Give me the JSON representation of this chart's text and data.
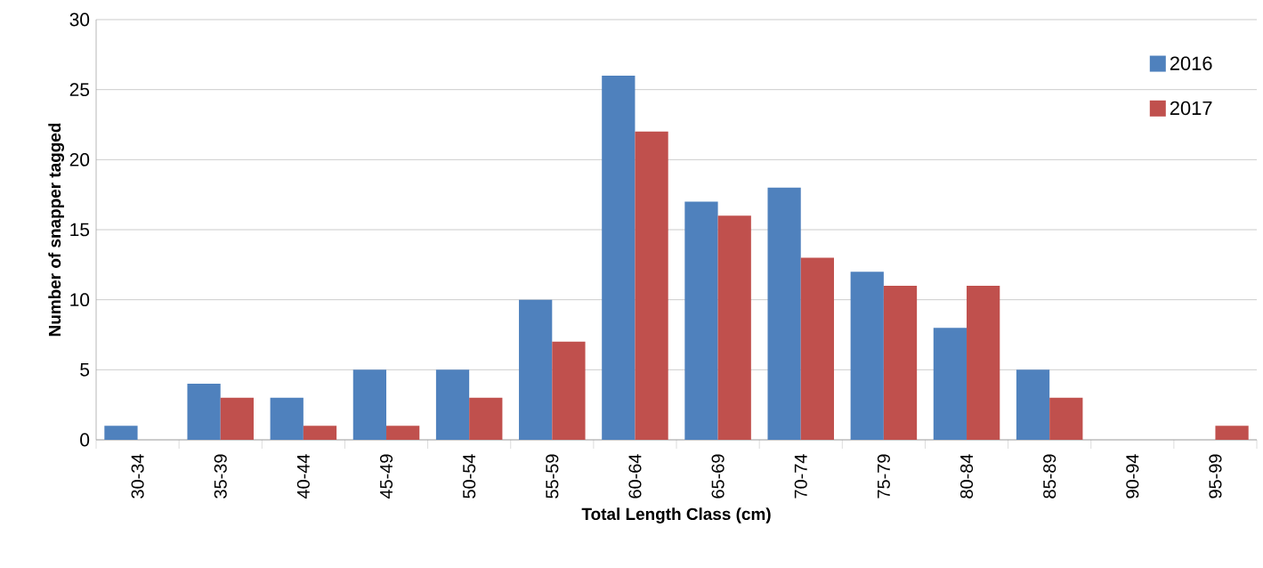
{
  "chart_data": {
    "type": "bar",
    "xlabel": "Total Length Class (cm)",
    "ylabel": "Number of snapper tagged",
    "categories": [
      "30-34",
      "35-39",
      "40-44",
      "45-49",
      "50-54",
      "55-59",
      "60-64",
      "65-69",
      "70-74",
      "75-79",
      "80-84",
      "85-89",
      "90-94",
      "95-99"
    ],
    "series": [
      {
        "name": "2016",
        "color": "#4f81bd",
        "values": [
          1,
          4,
          3,
          5,
          5,
          10,
          26,
          17,
          18,
          12,
          8,
          5,
          0,
          0
        ]
      },
      {
        "name": "2017",
        "color": "#c0504d",
        "values": [
          0,
          3,
          1,
          1,
          3,
          7,
          22,
          16,
          13,
          11,
          11,
          3,
          0,
          1
        ]
      }
    ],
    "ylim": [
      0,
      30
    ],
    "yticks": [
      0,
      5,
      10,
      15,
      20,
      25,
      30
    ],
    "grid": "y",
    "legend": "top right"
  }
}
